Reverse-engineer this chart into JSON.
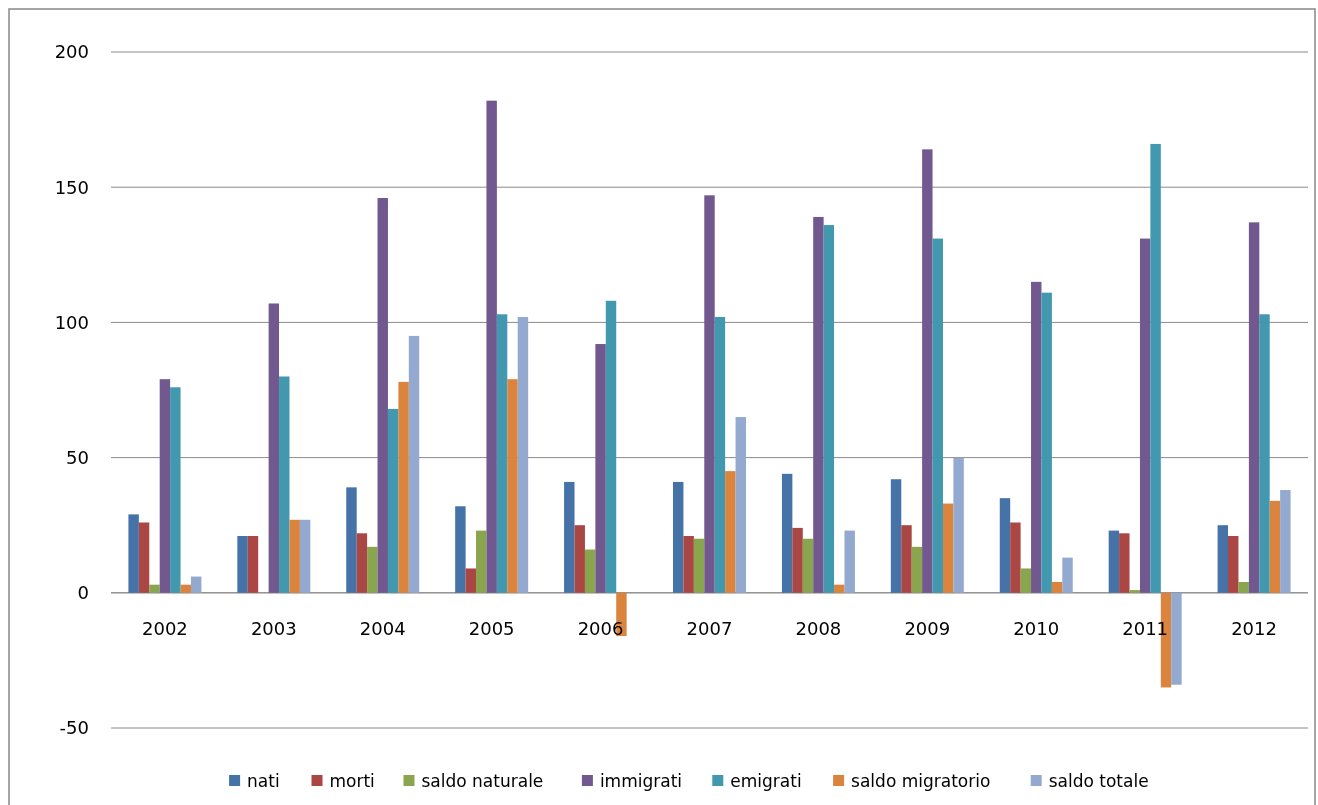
{
  "chart_data": {
    "type": "bar",
    "categories": [
      "2002",
      "2003",
      "2004",
      "2005",
      "2006",
      "2007",
      "2008",
      "2009",
      "2010",
      "2011",
      "2012"
    ],
    "series": [
      {
        "name": "nati",
        "color": "#4572a7",
        "values": [
          29,
          21,
          39,
          32,
          41,
          41,
          44,
          42,
          35,
          23,
          25
        ]
      },
      {
        "name": "morti",
        "color": "#aa4643",
        "values": [
          26,
          21,
          22,
          9,
          25,
          21,
          24,
          25,
          26,
          22,
          21
        ]
      },
      {
        "name": "saldo naturale",
        "color": "#89a54e",
        "values": [
          3,
          0,
          17,
          23,
          16,
          20,
          20,
          17,
          9,
          1,
          4
        ]
      },
      {
        "name": "immigrati",
        "color": "#71588f",
        "values": [
          79,
          107,
          146,
          182,
          92,
          147,
          139,
          164,
          115,
          131,
          137
        ]
      },
      {
        "name": "emigrati",
        "color": "#4198af",
        "values": [
          76,
          80,
          68,
          103,
          108,
          102,
          136,
          131,
          111,
          166,
          103
        ]
      },
      {
        "name": "saldo migratorio",
        "color": "#db843d",
        "values": [
          3,
          27,
          78,
          79,
          -16,
          45,
          3,
          33,
          4,
          -35,
          34
        ]
      },
      {
        "name": "saldo totale",
        "color": "#93a9cf",
        "values": [
          6,
          27,
          95,
          102,
          0,
          65,
          23,
          50,
          13,
          -34,
          38
        ]
      }
    ],
    "ylim": [
      -50,
      200
    ],
    "yticks": [
      -50,
      0,
      50,
      100,
      150,
      200
    ],
    "grid": "y",
    "legend": "bottom"
  }
}
